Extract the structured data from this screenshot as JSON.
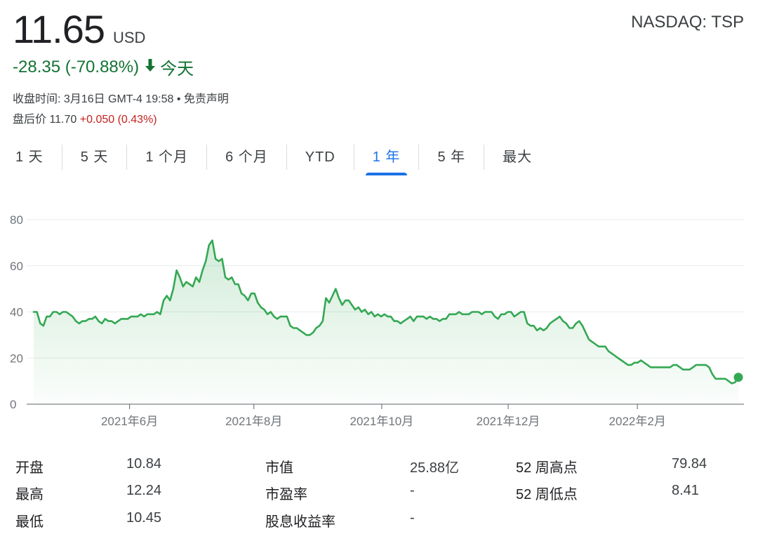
{
  "header": {
    "price": "11.65",
    "currency": "USD",
    "ticker": "NASDAQ: TSP",
    "change": "-28.35 (-70.88%)",
    "change_arrow": "down-arrow-icon",
    "change_period": "今天",
    "close_time": "收盘时间: 3月16日 GMT-4 19:58 • 免责声明",
    "after_hours_label": "盘后价 11.70",
    "after_hours_change": "+0.050 (0.43%)",
    "down_color": "#137333",
    "up_color": "#c5221f"
  },
  "tabs": [
    {
      "label": "1 天",
      "active": false
    },
    {
      "label": "5 天",
      "active": false
    },
    {
      "label": "1 个月",
      "active": false
    },
    {
      "label": "6 个月",
      "active": false
    },
    {
      "label": "YTD",
      "active": false
    },
    {
      "label": "1 年",
      "active": true
    },
    {
      "label": "5 年",
      "active": false
    },
    {
      "label": "最大",
      "active": false
    }
  ],
  "chart_data": {
    "type": "area",
    "line_color": "#34a853",
    "ylim": [
      0,
      80
    ],
    "yticks": [
      0,
      20,
      40,
      60,
      80
    ],
    "xticks": [
      {
        "label": "2021年6月",
        "t": 0.135
      },
      {
        "label": "2021年8月",
        "t": 0.31
      },
      {
        "label": "2021年10月",
        "t": 0.49
      },
      {
        "label": "2021年12月",
        "t": 0.668
      },
      {
        "label": "2022年2月",
        "t": 0.85
      }
    ],
    "grid": true,
    "series": [
      {
        "values": [
          40,
          40,
          35,
          34,
          38,
          38,
          40,
          40,
          39,
          40,
          40,
          39,
          38,
          36,
          35,
          36,
          36,
          37,
          37,
          38,
          36,
          35,
          37,
          36,
          36,
          35,
          36,
          37,
          37,
          37,
          38,
          38,
          38,
          39,
          38,
          39,
          39,
          39,
          40,
          39,
          45,
          47,
          45,
          50,
          58,
          55,
          51,
          53,
          52,
          51,
          55,
          53,
          58,
          62,
          69,
          71,
          63,
          62,
          63,
          55,
          54,
          55,
          52,
          52,
          48,
          47,
          45,
          48,
          48,
          44,
          42,
          41,
          39,
          40,
          38,
          37,
          38,
          38,
          38,
          34,
          33,
          33,
          32,
          31,
          30,
          30,
          31,
          33,
          34,
          36,
          46,
          44,
          47,
          50,
          46,
          43,
          45,
          45,
          43,
          41,
          42,
          40,
          41,
          39,
          40,
          38,
          39,
          38,
          39,
          38,
          38,
          36,
          36,
          35,
          36,
          37,
          38,
          36,
          38,
          38,
          38,
          37,
          38,
          37,
          37,
          36,
          37,
          37,
          39,
          39,
          39,
          40,
          39,
          39,
          39,
          40,
          40,
          40,
          39,
          40,
          40,
          40,
          38,
          37,
          39,
          39,
          40,
          40,
          38,
          39,
          40,
          40,
          35,
          34,
          34,
          32,
          33,
          32,
          33,
          35,
          36,
          37,
          38,
          36,
          35,
          33,
          33,
          35,
          36,
          34,
          31,
          28,
          27,
          26,
          25,
          25,
          25,
          23,
          22,
          21,
          20,
          19,
          18,
          17,
          17,
          18,
          18,
          19,
          18,
          17,
          16,
          16,
          16,
          16,
          16,
          16,
          16,
          17,
          17,
          16,
          15,
          15,
          15,
          16,
          17,
          17,
          17,
          17,
          16,
          13,
          11,
          11,
          11,
          11,
          10,
          9,
          9.5,
          11.65
        ]
      }
    ]
  },
  "stats": [
    [
      {
        "label": "开盘",
        "value": "10.84"
      },
      {
        "label": "市值",
        "value": "25.88亿"
      },
      {
        "label": "52 周高点",
        "value": "79.84"
      }
    ],
    [
      {
        "label": "最高",
        "value": "12.24"
      },
      {
        "label": "市盈率",
        "value": "-"
      },
      {
        "label": "52 周低点",
        "value": "8.41"
      }
    ],
    [
      {
        "label": "最低",
        "value": "10.45"
      },
      {
        "label": "股息收益率",
        "value": "-"
      },
      {
        "label": "",
        "value": ""
      }
    ]
  ]
}
